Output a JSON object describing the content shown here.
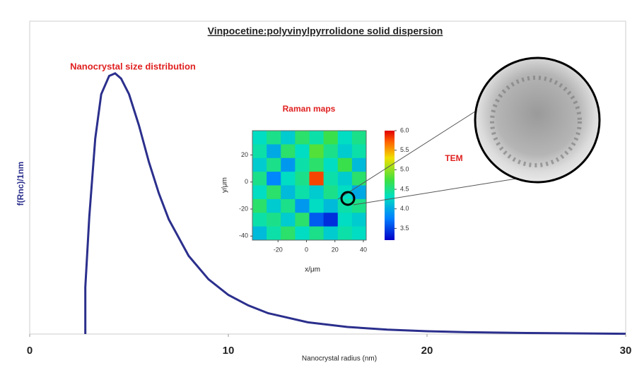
{
  "chart_data": [
    {
      "type": "line",
      "title": "Vinpocetine:polyvinylpyrrolidone solid dispersion",
      "annotation": "Nanocrystal size distribution",
      "x_label": "Nanocrystal radius (nm)",
      "y_label": "f(Rnc)/1nm",
      "xlim": [
        0,
        30
      ],
      "xticks": [
        0,
        10,
        20,
        30
      ],
      "ylim": [
        0,
        1.2
      ],
      "series": [
        {
          "color": "#2b2f8c",
          "x": [
            2.8,
            2.8,
            3.0,
            3.3,
            3.6,
            4.0,
            4.3,
            4.6,
            5.0,
            5.5,
            6,
            6.5,
            7,
            8,
            9,
            10,
            11,
            12,
            14,
            16,
            18,
            20,
            22,
            25,
            30
          ],
          "values": [
            0,
            0.18,
            0.45,
            0.75,
            0.92,
            0.99,
            1.0,
            0.98,
            0.92,
            0.8,
            0.66,
            0.54,
            0.44,
            0.3,
            0.21,
            0.15,
            0.11,
            0.08,
            0.045,
            0.027,
            0.017,
            0.011,
            0.007,
            0.004,
            0.001
          ]
        }
      ]
    },
    {
      "type": "heatmap",
      "title": "Raman maps",
      "annotation": "TEM",
      "x_label": "x/μm",
      "y_label": "y/μm",
      "xlim": [
        -38,
        42
      ],
      "xticks": [
        -20,
        0,
        20,
        40
      ],
      "ylim": [
        -43,
        38
      ],
      "yticks": [
        -40,
        -20,
        0,
        20
      ],
      "colorlim": [
        3.2,
        6.0
      ],
      "colorticks": [
        3.5,
        {
          "value": 4,
          "label": "4.0"
        },
        4.5,
        {
          "value": 5,
          "label": "5.0"
        },
        5.5,
        {
          "value": 6,
          "label": "6.0"
        }
      ],
      "z": [
        [
          4.3,
          4.5,
          4.2,
          4.6,
          4.4,
          4.7,
          4.3,
          4.5
        ],
        [
          4.4,
          4.0,
          4.6,
          4.3,
          4.8,
          4.5,
          4.2,
          4.4
        ],
        [
          4.2,
          4.5,
          3.9,
          4.4,
          4.6,
          4.3,
          4.7,
          4.1
        ],
        [
          4.5,
          3.8,
          4.3,
          4.5,
          5.8,
          4.4,
          4.2,
          4.6
        ],
        [
          4.3,
          4.6,
          4.1,
          4.4,
          4.2,
          4.5,
          4.3,
          4.0
        ],
        [
          4.6,
          4.2,
          4.5,
          3.9,
          4.3,
          4.1,
          4.4,
          4.5
        ],
        [
          4.4,
          4.5,
          4.2,
          4.6,
          3.6,
          3.4,
          4.3,
          4.2
        ],
        [
          4.1,
          4.4,
          4.6,
          4.3,
          4.5,
          4.2,
          4.4,
          4.3
        ]
      ]
    }
  ]
}
